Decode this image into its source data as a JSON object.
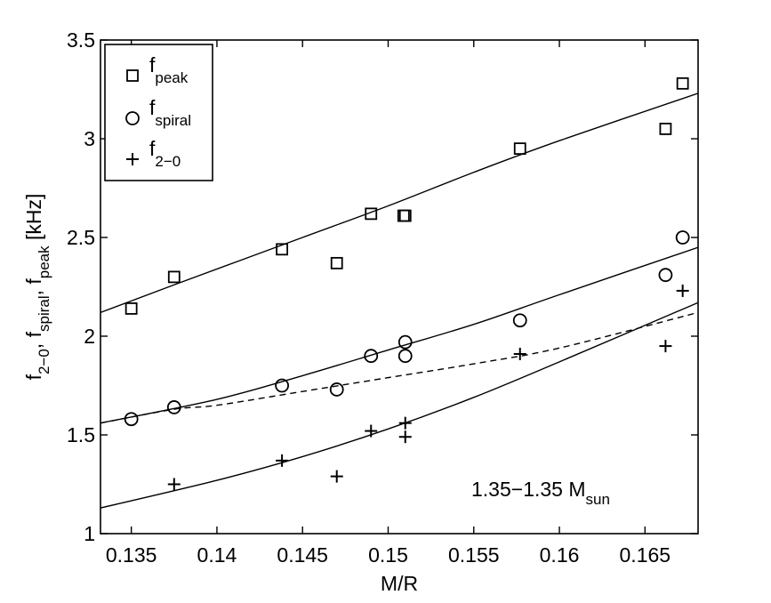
{
  "chart_data": {
    "type": "scatter",
    "xlabel": "M/R",
    "ylabel": "[kHz]",
    "ylabel_parts": [
      {
        "main": "f",
        "sub": "2−0",
        "after": ", "
      },
      {
        "main": "f",
        "sub": "spiral",
        "after": ", "
      },
      {
        "main": "f",
        "sub": "peak",
        "after": " "
      }
    ],
    "xlim": [
      0.1332,
      0.1681
    ],
    "ylim": [
      1.0,
      3.5
    ],
    "x_ticks": [
      0.135,
      0.14,
      0.145,
      0.15,
      0.155,
      0.16,
      0.165
    ],
    "x_tick_labels": [
      "0.135",
      "0.14",
      "0.145",
      "0.15",
      "0.155",
      "0.16",
      "0.165"
    ],
    "y_ticks": [
      1.0,
      1.5,
      2.0,
      2.5,
      3.0,
      3.5
    ],
    "y_tick_labels": [
      "1",
      "1.5",
      "2",
      "2.5",
      "3",
      "3.5"
    ],
    "grid": false,
    "legend_position": "top-left",
    "annotation": {
      "text": "1.35−1.35 M",
      "sub": "sun"
    },
    "series": [
      {
        "name": "f",
        "name_sub": "peak",
        "marker": "square",
        "x": [
          0.135,
          0.1375,
          0.1438,
          0.147,
          0.149,
          0.1509,
          0.151,
          0.1577,
          0.1662,
          0.1672
        ],
        "y": [
          2.14,
          2.3,
          2.44,
          2.37,
          2.62,
          2.61,
          2.61,
          2.95,
          3.05,
          3.28
        ]
      },
      {
        "name": "f",
        "name_sub": "spiral",
        "marker": "circle",
        "x": [
          0.135,
          0.1375,
          0.1438,
          0.147,
          0.149,
          0.151,
          0.151,
          0.1577,
          0.1662,
          0.1672
        ],
        "y": [
          1.58,
          1.64,
          1.75,
          1.73,
          1.9,
          1.97,
          1.9,
          2.08,
          2.31,
          2.5
        ]
      },
      {
        "name": "f",
        "name_sub": "2−0",
        "marker": "plus",
        "x": [
          0.1375,
          0.1438,
          0.147,
          0.149,
          0.151,
          0.151,
          0.1577,
          0.1662,
          0.1672
        ],
        "y": [
          1.25,
          1.37,
          1.29,
          1.52,
          1.49,
          1.56,
          1.91,
          1.95,
          2.23
        ]
      }
    ],
    "fits": [
      {
        "style": "solid",
        "x": [
          0.1332,
          0.1375,
          0.145,
          0.15,
          0.155,
          0.16,
          0.1681
        ],
        "y": [
          2.12,
          2.26,
          2.5,
          2.66,
          2.83,
          2.99,
          3.23
        ]
      },
      {
        "style": "solid",
        "x": [
          0.1332,
          0.14,
          0.145,
          0.15,
          0.155,
          0.16,
          0.1681
        ],
        "y": [
          1.56,
          1.68,
          1.8,
          1.93,
          2.06,
          2.21,
          2.45
        ]
      },
      {
        "style": "solid",
        "x": [
          0.1332,
          0.14,
          0.145,
          0.15,
          0.155,
          0.16,
          0.1681
        ],
        "y": [
          1.13,
          1.27,
          1.39,
          1.53,
          1.69,
          1.87,
          2.17
        ]
      },
      {
        "style": "dashed",
        "x": [
          0.1332,
          0.1375,
          0.14,
          0.145,
          0.15,
          0.155,
          0.16,
          0.1681
        ],
        "y": [
          1.56,
          1.63,
          1.65,
          1.72,
          1.79,
          1.86,
          1.94,
          2.12
        ]
      }
    ]
  }
}
